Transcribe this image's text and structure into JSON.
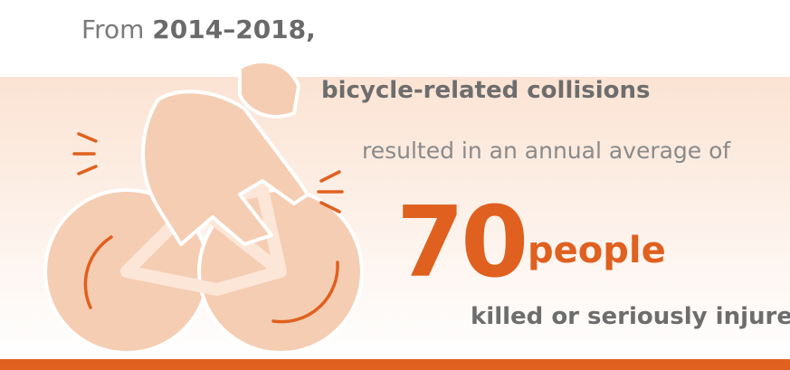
{
  "intro": {
    "prefix": "From",
    "period": "2014–2018,"
  },
  "subject": "bicycle-related collisions",
  "middle": "resulted in an annual average of",
  "stat": {
    "number": 70,
    "unit": "people"
  },
  "outcome": "killed or seriously injured."
}
